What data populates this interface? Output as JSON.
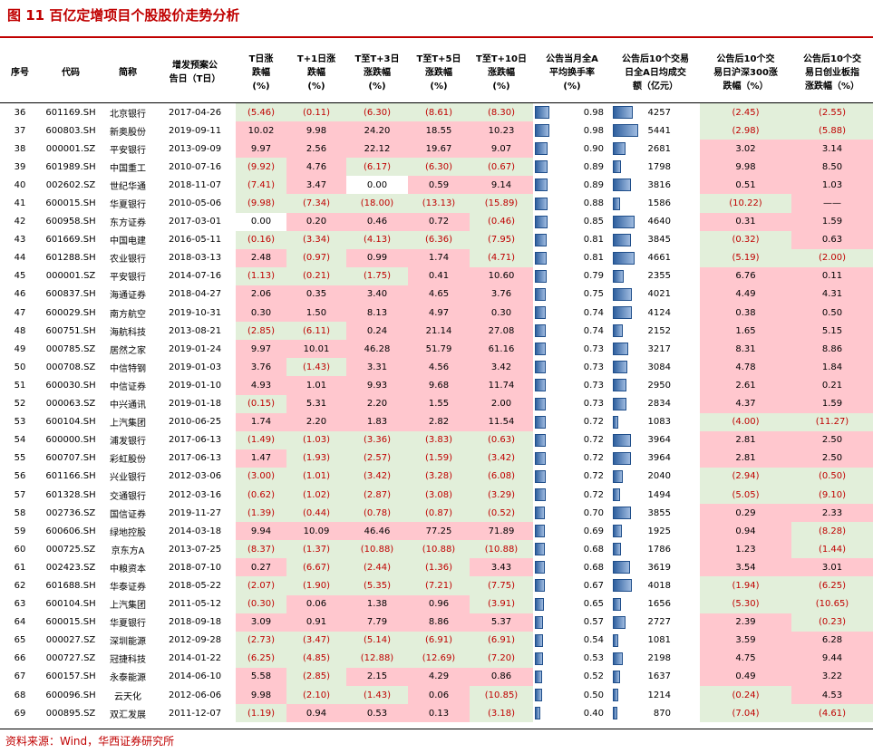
{
  "title": "图 11 百亿定增项目个股股价走势分析",
  "source": "资料来源：Wind，华西证券研究所",
  "headers": [
    "序号",
    "代码",
    "简称",
    "增发预案公\n告日（T日）",
    "T日涨\n跌幅\n(%)",
    "T+1日涨\n跌幅\n(%)",
    "T至T+3日\n涨跌幅\n(%)",
    "T至T+5日\n涨跌幅\n(%)",
    "T至T+10日\n涨跌幅\n(%)",
    "公告当月全A\n平均换手率\n(%)",
    "公告后10个交易\n日全A日均成交\n额（亿元）",
    "公告后10个交\n易日沪深300涨\n跌幅（%）",
    "公告后10个交\n易日创业板指\n涨跌幅（%）"
  ],
  "rows": [
    [
      "36",
      "601169.SH",
      "北京银行",
      "2017-04-26",
      "(5.46)",
      "(0.11)",
      "(6.30)",
      "(8.61)",
      "(8.30)",
      "0.98",
      "4257",
      "(2.45)",
      "(2.55)"
    ],
    [
      "37",
      "600803.SH",
      "新奥股份",
      "2019-09-11",
      "10.02",
      "9.98",
      "24.20",
      "18.55",
      "10.23",
      "0.98",
      "5441",
      "(2.98)",
      "(5.88)"
    ],
    [
      "38",
      "000001.SZ",
      "平安银行",
      "2013-09-09",
      "9.97",
      "2.56",
      "22.12",
      "19.67",
      "9.07",
      "0.90",
      "2681",
      "3.02",
      "3.14"
    ],
    [
      "39",
      "601989.SH",
      "中国重工",
      "2010-07-16",
      "(9.92)",
      "4.76",
      "(6.17)",
      "(6.30)",
      "(0.67)",
      "0.89",
      "1798",
      "9.98",
      "8.50"
    ],
    [
      "40",
      "002602.SZ",
      "世纪华通",
      "2018-11-07",
      "(7.41)",
      "3.47",
      "0.00",
      "0.59",
      "9.14",
      "0.89",
      "3816",
      "0.51",
      "1.03"
    ],
    [
      "41",
      "600015.SH",
      "华夏银行",
      "2010-05-06",
      "(9.98)",
      "(7.34)",
      "(18.00)",
      "(13.13)",
      "(15.89)",
      "0.88",
      "1586",
      "(10.22)",
      "——"
    ],
    [
      "42",
      "600958.SH",
      "东方证券",
      "2017-03-01",
      "0.00",
      "0.20",
      "0.46",
      "0.72",
      "(0.46)",
      "0.85",
      "4640",
      "0.31",
      "1.59"
    ],
    [
      "43",
      "601669.SH",
      "中国电建",
      "2016-05-11",
      "(0.16)",
      "(3.34)",
      "(4.13)",
      "(6.36)",
      "(7.95)",
      "0.81",
      "3845",
      "(0.32)",
      "0.63"
    ],
    [
      "44",
      "601288.SH",
      "农业银行",
      "2018-03-13",
      "2.48",
      "(0.97)",
      "0.99",
      "1.74",
      "(4.71)",
      "0.81",
      "4661",
      "(5.19)",
      "(2.00)"
    ],
    [
      "45",
      "000001.SZ",
      "平安银行",
      "2014-07-16",
      "(1.13)",
      "(0.21)",
      "(1.75)",
      "0.41",
      "10.60",
      "0.79",
      "2355",
      "6.76",
      "0.11"
    ],
    [
      "46",
      "600837.SH",
      "海通证券",
      "2018-04-27",
      "2.06",
      "0.35",
      "3.40",
      "4.65",
      "3.76",
      "0.75",
      "4021",
      "4.49",
      "4.31"
    ],
    [
      "47",
      "600029.SH",
      "南方航空",
      "2019-10-31",
      "0.30",
      "1.50",
      "8.13",
      "4.97",
      "0.30",
      "0.74",
      "4124",
      "0.38",
      "0.50"
    ],
    [
      "48",
      "600751.SH",
      "海航科技",
      "2013-08-21",
      "(2.85)",
      "(6.11)",
      "0.24",
      "21.14",
      "27.08",
      "0.74",
      "2152",
      "1.65",
      "5.15"
    ],
    [
      "49",
      "000785.SZ",
      "居然之家",
      "2019-01-24",
      "9.97",
      "10.01",
      "46.28",
      "51.79",
      "61.16",
      "0.73",
      "3217",
      "8.31",
      "8.86"
    ],
    [
      "50",
      "000708.SZ",
      "中信特钢",
      "2019-01-03",
      "3.76",
      "(1.43)",
      "3.31",
      "4.56",
      "3.42",
      "0.73",
      "3084",
      "4.78",
      "1.84"
    ],
    [
      "51",
      "600030.SH",
      "中信证券",
      "2019-01-10",
      "4.93",
      "1.01",
      "9.93",
      "9.68",
      "11.74",
      "0.73",
      "2950",
      "2.61",
      "0.21"
    ],
    [
      "52",
      "000063.SZ",
      "中兴通讯",
      "2019-01-18",
      "(0.15)",
      "5.31",
      "2.20",
      "1.55",
      "2.00",
      "0.73",
      "2834",
      "4.37",
      "1.59"
    ],
    [
      "53",
      "600104.SH",
      "上汽集团",
      "2010-06-25",
      "1.74",
      "2.20",
      "1.83",
      "2.82",
      "11.54",
      "0.72",
      "1083",
      "(4.00)",
      "(11.27)"
    ],
    [
      "54",
      "600000.SH",
      "浦发银行",
      "2017-06-13",
      "(1.49)",
      "(1.03)",
      "(3.36)",
      "(3.83)",
      "(0.63)",
      "0.72",
      "3964",
      "2.81",
      "2.50"
    ],
    [
      "55",
      "600707.SH",
      "彩虹股份",
      "2017-06-13",
      "1.47",
      "(1.93)",
      "(2.57)",
      "(1.59)",
      "(3.42)",
      "0.72",
      "3964",
      "2.81",
      "2.50"
    ],
    [
      "56",
      "601166.SH",
      "兴业银行",
      "2012-03-06",
      "(3.00)",
      "(1.01)",
      "(3.42)",
      "(3.28)",
      "(6.08)",
      "0.72",
      "2040",
      "(2.94)",
      "(0.50)"
    ],
    [
      "57",
      "601328.SH",
      "交通银行",
      "2012-03-16",
      "(0.62)",
      "(1.02)",
      "(2.87)",
      "(3.08)",
      "(3.29)",
      "0.72",
      "1494",
      "(5.05)",
      "(9.10)"
    ],
    [
      "58",
      "002736.SZ",
      "国信证券",
      "2019-11-27",
      "(1.39)",
      "(0.44)",
      "(0.78)",
      "(0.87)",
      "(0.52)",
      "0.70",
      "3855",
      "0.29",
      "2.33"
    ],
    [
      "59",
      "600606.SH",
      "绿地控股",
      "2014-03-18",
      "9.94",
      "10.09",
      "46.46",
      "77.25",
      "71.89",
      "0.69",
      "1925",
      "0.94",
      "(8.28)"
    ],
    [
      "60",
      "000725.SZ",
      "京东方A",
      "2013-07-25",
      "(8.37)",
      "(1.37)",
      "(10.88)",
      "(10.88)",
      "(10.88)",
      "0.68",
      "1786",
      "1.23",
      "(1.44)"
    ],
    [
      "61",
      "002423.SZ",
      "中粮资本",
      "2018-07-10",
      "0.27",
      "(6.67)",
      "(2.44)",
      "(1.36)",
      "3.43",
      "0.68",
      "3619",
      "3.54",
      "3.01"
    ],
    [
      "62",
      "601688.SH",
      "华泰证券",
      "2018-05-22",
      "(2.07)",
      "(1.90)",
      "(5.35)",
      "(7.21)",
      "(7.75)",
      "0.67",
      "4018",
      "(1.94)",
      "(6.25)"
    ],
    [
      "63",
      "600104.SH",
      "上汽集团",
      "2011-05-12",
      "(0.30)",
      "0.06",
      "1.38",
      "0.96",
      "(3.91)",
      "0.65",
      "1656",
      "(5.30)",
      "(10.65)"
    ],
    [
      "64",
      "600015.SH",
      "华夏银行",
      "2018-09-18",
      "3.09",
      "0.91",
      "7.79",
      "8.86",
      "5.37",
      "0.57",
      "2727",
      "2.39",
      "(0.23)"
    ],
    [
      "65",
      "000027.SZ",
      "深圳能源",
      "2012-09-28",
      "(2.73)",
      "(3.47)",
      "(5.14)",
      "(6.91)",
      "(6.91)",
      "0.54",
      "1081",
      "3.59",
      "6.28"
    ],
    [
      "66",
      "000727.SZ",
      "冠捷科技",
      "2014-01-22",
      "(6.25)",
      "(4.85)",
      "(12.88)",
      "(12.69)",
      "(7.20)",
      "0.53",
      "2198",
      "4.75",
      "9.44"
    ],
    [
      "67",
      "600157.SH",
      "永泰能源",
      "2014-06-10",
      "5.58",
      "(2.85)",
      "2.15",
      "4.29",
      "0.86",
      "0.52",
      "1637",
      "0.49",
      "3.22"
    ],
    [
      "68",
      "600096.SH",
      "云天化",
      "2012-06-06",
      "9.98",
      "(2.10)",
      "(1.43)",
      "0.06",
      "(10.85)",
      "0.50",
      "1214",
      "(0.24)",
      "4.53"
    ],
    [
      "69",
      "000895.SZ",
      "双汇发展",
      "2011-12-07",
      "(1.19)",
      "0.94",
      "0.53",
      "0.13",
      "(3.18)",
      "0.40",
      "870",
      "(7.04)",
      "(4.61)"
    ]
  ]
}
